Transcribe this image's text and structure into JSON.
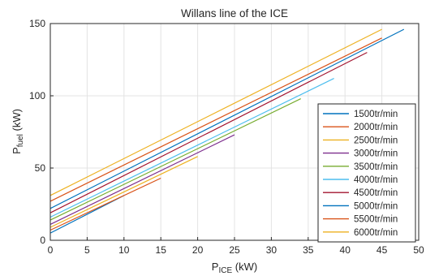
{
  "chart_data": {
    "type": "line",
    "title": "Willans line of the ICE",
    "xlabel": {
      "main": "P",
      "sub": "ICE",
      "unit": " (kW)"
    },
    "ylabel": {
      "main": "P",
      "sub": "fuel",
      "unit": " (kW)"
    },
    "xlim": [
      0,
      50
    ],
    "ylim": [
      0,
      150
    ],
    "xticks": [
      "0",
      "5",
      "10",
      "15",
      "20",
      "25",
      "30",
      "35",
      "40",
      "45",
      "50"
    ],
    "yticks": [
      "0",
      "50",
      "100",
      "150"
    ],
    "grid": true,
    "legend_position": "bottom-right",
    "series": [
      {
        "name": "1500tr/min",
        "color": "#0072BD",
        "points": [
          [
            0,
            5
          ],
          [
            10,
            31
          ]
        ]
      },
      {
        "name": "2000tr/min",
        "color": "#D95319",
        "points": [
          [
            0,
            7
          ],
          [
            15,
            43
          ]
        ]
      },
      {
        "name": "2500tr/min",
        "color": "#EDB120",
        "points": [
          [
            0,
            9
          ],
          [
            20,
            58
          ]
        ]
      },
      {
        "name": "3000tr/min",
        "color": "#7E2F8E",
        "points": [
          [
            0,
            11
          ],
          [
            25,
            73
          ]
        ]
      },
      {
        "name": "3500tr/min",
        "color": "#77AC30",
        "points": [
          [
            0,
            14
          ],
          [
            34,
            98
          ]
        ]
      },
      {
        "name": "4000tr/min",
        "color": "#4DBEEE",
        "points": [
          [
            0,
            16
          ],
          [
            38.5,
            112
          ]
        ]
      },
      {
        "name": "4500tr/min",
        "color": "#A2142F",
        "points": [
          [
            0,
            19
          ],
          [
            43,
            130
          ]
        ]
      },
      {
        "name": "5000tr/min",
        "color": "#0072BD",
        "points": [
          [
            0,
            22
          ],
          [
            48,
            146
          ]
        ]
      },
      {
        "name": "5500tr/min",
        "color": "#D95319",
        "points": [
          [
            0,
            27
          ],
          [
            45,
            140
          ]
        ]
      },
      {
        "name": "6000tr/min",
        "color": "#EDB120",
        "points": [
          [
            0,
            31
          ],
          [
            45,
            146
          ]
        ]
      }
    ]
  }
}
